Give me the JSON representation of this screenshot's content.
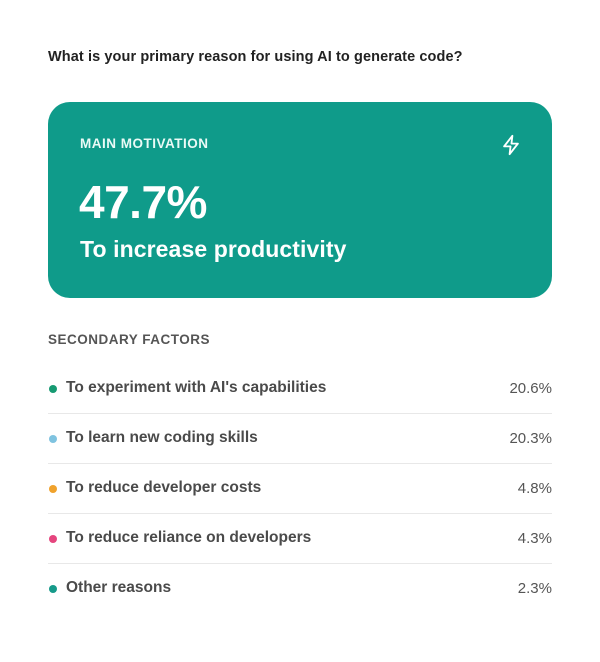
{
  "question": "What is your primary reason for using AI to generate code?",
  "main": {
    "label": "MAIN MOTIVATION",
    "value_text": "47.7%",
    "caption": "To increase productivity",
    "icon": "lightning-icon",
    "color": "#0f9b8a"
  },
  "secondary_title": "SECONDARY FACTORS",
  "chart_data": {
    "type": "table",
    "title": "What is your primary reason for using AI to generate code?",
    "categories": [
      "To increase productivity",
      "To experiment with AI's capabilities",
      "To learn new coding skills",
      "To reduce developer costs",
      "To reduce reliance on developers",
      "Other reasons"
    ],
    "values": [
      47.7,
      20.6,
      20.3,
      4.8,
      4.3,
      2.3
    ],
    "unit": "%",
    "rows": [
      {
        "label": "To experiment with AI's capabilities",
        "value": 20.6,
        "value_text": "20.6%",
        "color": "#169a72"
      },
      {
        "label": "To learn new coding skills",
        "value": 20.3,
        "value_text": "20.3%",
        "color": "#7fc3e0"
      },
      {
        "label": "To reduce developer costs",
        "value": 4.8,
        "value_text": "4.8%",
        "color": "#f0a22c"
      },
      {
        "label": "To reduce reliance on developers",
        "value": 4.3,
        "value_text": "4.3%",
        "color": "#e5457e"
      },
      {
        "label": "Other reasons",
        "value": 2.3,
        "value_text": "2.3%",
        "color": "#169a8a"
      }
    ]
  }
}
